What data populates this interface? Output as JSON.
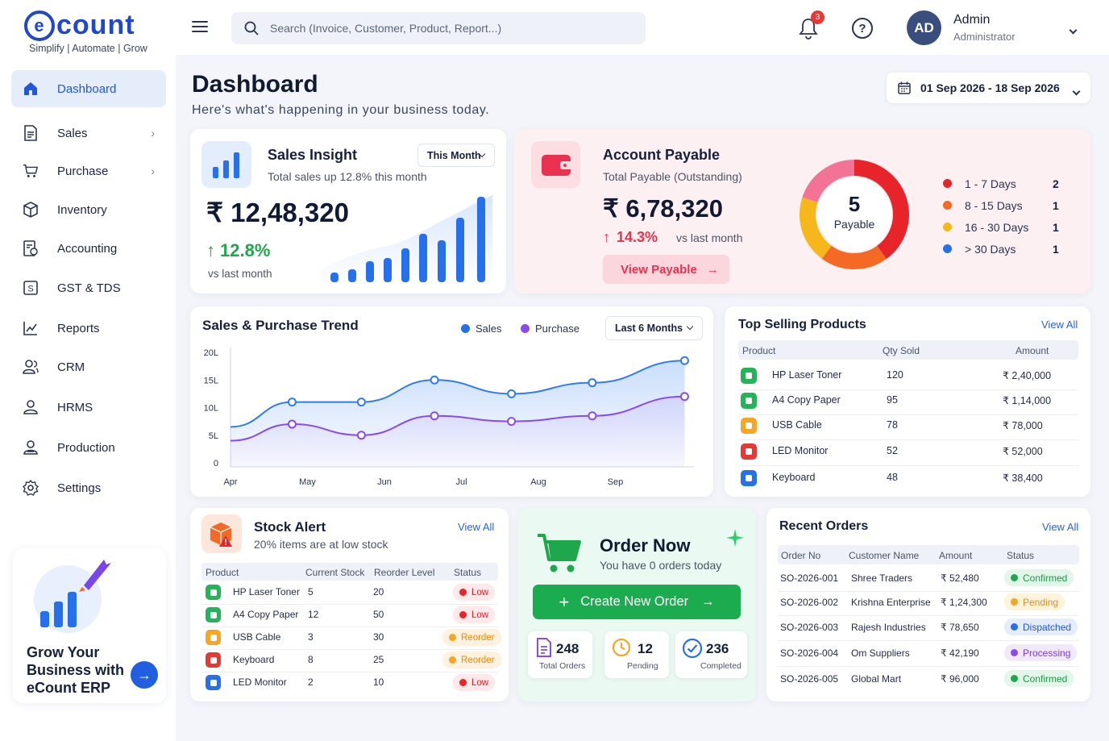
{
  "brand": {
    "name": "ecount",
    "tagline": "Simplify | Automate | Grow"
  },
  "sidebar": {
    "items": [
      {
        "label": "Dashboard",
        "icon": "home-icon",
        "active": true
      },
      {
        "label": "Sales",
        "icon": "document-icon",
        "chevron": true
      },
      {
        "label": "Purchase",
        "icon": "cart-icon",
        "chevron": true
      },
      {
        "label": "Inventory",
        "icon": "box-icon"
      },
      {
        "label": "Accounting",
        "icon": "ledger-icon"
      },
      {
        "label": "GST & TDS",
        "icon": "tax-icon"
      },
      {
        "label": "Reports",
        "icon": "chart-icon"
      },
      {
        "label": "CRM",
        "icon": "users-icon"
      },
      {
        "label": "HRMS",
        "icon": "person-icon"
      },
      {
        "label": "Production",
        "icon": "factory-icon"
      },
      {
        "label": "Settings",
        "icon": "gear-icon"
      }
    ],
    "promo": {
      "text": "Grow Your Business with eCount ERP"
    }
  },
  "header": {
    "search_placeholder": "Search (Invoice, Customer, Product, Report...)",
    "notification_count": "3",
    "user": {
      "initials": "AD",
      "name": "Admin",
      "role": "Administrator"
    }
  },
  "page": {
    "title": "Dashboard",
    "subtitle": "Here's what's happening in your business today.",
    "date_range": "01 Sep 2026 - 18 Sep 2026"
  },
  "sales_insight": {
    "title": "Sales Insight",
    "subtitle": "Total sales up 12.8% this month",
    "period": "This Month",
    "amount": "₹ 12,48,320",
    "change": "12.8%",
    "change_note": "vs last month"
  },
  "account_payable": {
    "title": "Account Payable",
    "subtitle": "Total Payable (Outstanding)",
    "amount": "₹ 6,78,320",
    "change": "14.3%",
    "change_note": "vs last month",
    "button": "View Payable",
    "donut_value": "5",
    "donut_label": "Payable",
    "buckets": [
      {
        "label": "1 - 7 Days",
        "count": "2",
        "color": "#e8242b"
      },
      {
        "label": "8 - 15 Days",
        "count": "1",
        "color": "#f46a25"
      },
      {
        "label": "16 - 30 Days",
        "count": "1",
        "color": "#f5b71b"
      },
      {
        "label": "> 30 Days",
        "count": "1",
        "color": "#2671ea"
      }
    ]
  },
  "trend": {
    "title": "Sales & Purchase Trend",
    "period": "Last 6 Months",
    "legend": {
      "sales": "Sales",
      "purchase": "Purchase"
    },
    "y_ticks": [
      "20L",
      "15L",
      "10L",
      "5L",
      "0"
    ],
    "x_ticks": [
      "Apr",
      "May",
      "Jun",
      "Jul",
      "Aug",
      "Sep"
    ]
  },
  "chart_data": {
    "type": "area",
    "title": "Sales & Purchase Trend",
    "x": [
      "Apr",
      "May",
      "Jun",
      "Jul",
      "Aug",
      "Sep"
    ],
    "ylim": [
      0,
      20
    ],
    "y_unit": "L",
    "series": [
      {
        "name": "Sales",
        "color": "#2f7bf0",
        "x": [
          0,
          0.8,
          1.7,
          2.65,
          3.65,
          4.7,
          5.9
        ],
        "values": [
          6.5,
          11,
          11,
          15,
          12.5,
          14.5,
          18.5
        ]
      },
      {
        "name": "Purchase",
        "color": "#8a4be8",
        "x": [
          0,
          0.8,
          1.7,
          2.65,
          3.65,
          4.7,
          5.9
        ],
        "values": [
          4,
          7,
          5,
          8.5,
          7.5,
          8.5,
          12
        ]
      }
    ]
  },
  "top_products": {
    "title": "Top Selling Products",
    "view_all": "View All",
    "headers": [
      "Product",
      "Qty Sold",
      "Amount"
    ],
    "rows": [
      {
        "name": "HP Laser Toner",
        "qty": "120",
        "amount": "₹ 2,40,000",
        "color": "#25b35a"
      },
      {
        "name": "A4 Copy Paper",
        "qty": "95",
        "amount": "₹ 1,14,000",
        "color": "#25b35a"
      },
      {
        "name": "USB Cable",
        "qty": "78",
        "amount": "₹ 78,000",
        "color": "#f5a623"
      },
      {
        "name": "LED Monitor",
        "qty": "52",
        "amount": "₹ 52,000",
        "color": "#e53935"
      },
      {
        "name": "Keyboard",
        "qty": "48",
        "amount": "₹ 38,400",
        "color": "#2671ea"
      }
    ]
  },
  "stock_alert": {
    "title": "Stock Alert",
    "subtitle": "20% items are at low stock",
    "view_all": "View All",
    "headers": [
      "Product",
      "Current Stock",
      "Reorder Level",
      "Status"
    ],
    "rows": [
      {
        "name": "HP Laser Toner",
        "stock": "5",
        "reorder": "20",
        "status": "Low",
        "color": "#25b35a"
      },
      {
        "name": "A4 Copy Paper",
        "stock": "12",
        "reorder": "50",
        "status": "Low",
        "color": "#25b35a"
      },
      {
        "name": "USB Cable",
        "stock": "3",
        "reorder": "30",
        "status": "Reorder",
        "color": "#f5a623"
      },
      {
        "name": "Keyboard",
        "stock": "8",
        "reorder": "25",
        "status": "Reorder",
        "color": "#e53935"
      },
      {
        "name": "LED Monitor",
        "stock": "2",
        "reorder": "10",
        "status": "Low",
        "color": "#2671ea"
      }
    ]
  },
  "order_now": {
    "title": "Order Now",
    "subtitle": "You have 0 orders today",
    "button": "Create New Order",
    "stats": [
      {
        "value": "248",
        "label": "Total Orders",
        "icon": "document-icon"
      },
      {
        "value": "12",
        "label": "Pending",
        "icon": "clock-icon"
      },
      {
        "value": "236",
        "label": "Completed",
        "icon": "check-circle-icon"
      }
    ]
  },
  "recent_orders": {
    "title": "Recent Orders",
    "view_all": "View All",
    "headers": [
      "Order No",
      "Customer Name",
      "Amount",
      "Status"
    ],
    "rows": [
      {
        "no": "SO-2026-001",
        "customer": "Shree Traders",
        "amount": "₹ 52,480",
        "status": "Confirmed"
      },
      {
        "no": "SO-2026-002",
        "customer": "Krishna Enterprise",
        "amount": "₹ 1,24,300",
        "status": "Pending"
      },
      {
        "no": "SO-2026-003",
        "customer": "Rajesh Industries",
        "amount": "₹ 78,650",
        "status": "Dispatched"
      },
      {
        "no": "SO-2026-004",
        "customer": "Om Suppliers",
        "amount": "₹ 42,190",
        "status": "Processing"
      },
      {
        "no": "SO-2026-005",
        "customer": "Global Mart",
        "amount": "₹ 96,000",
        "status": "Confirmed"
      }
    ]
  }
}
